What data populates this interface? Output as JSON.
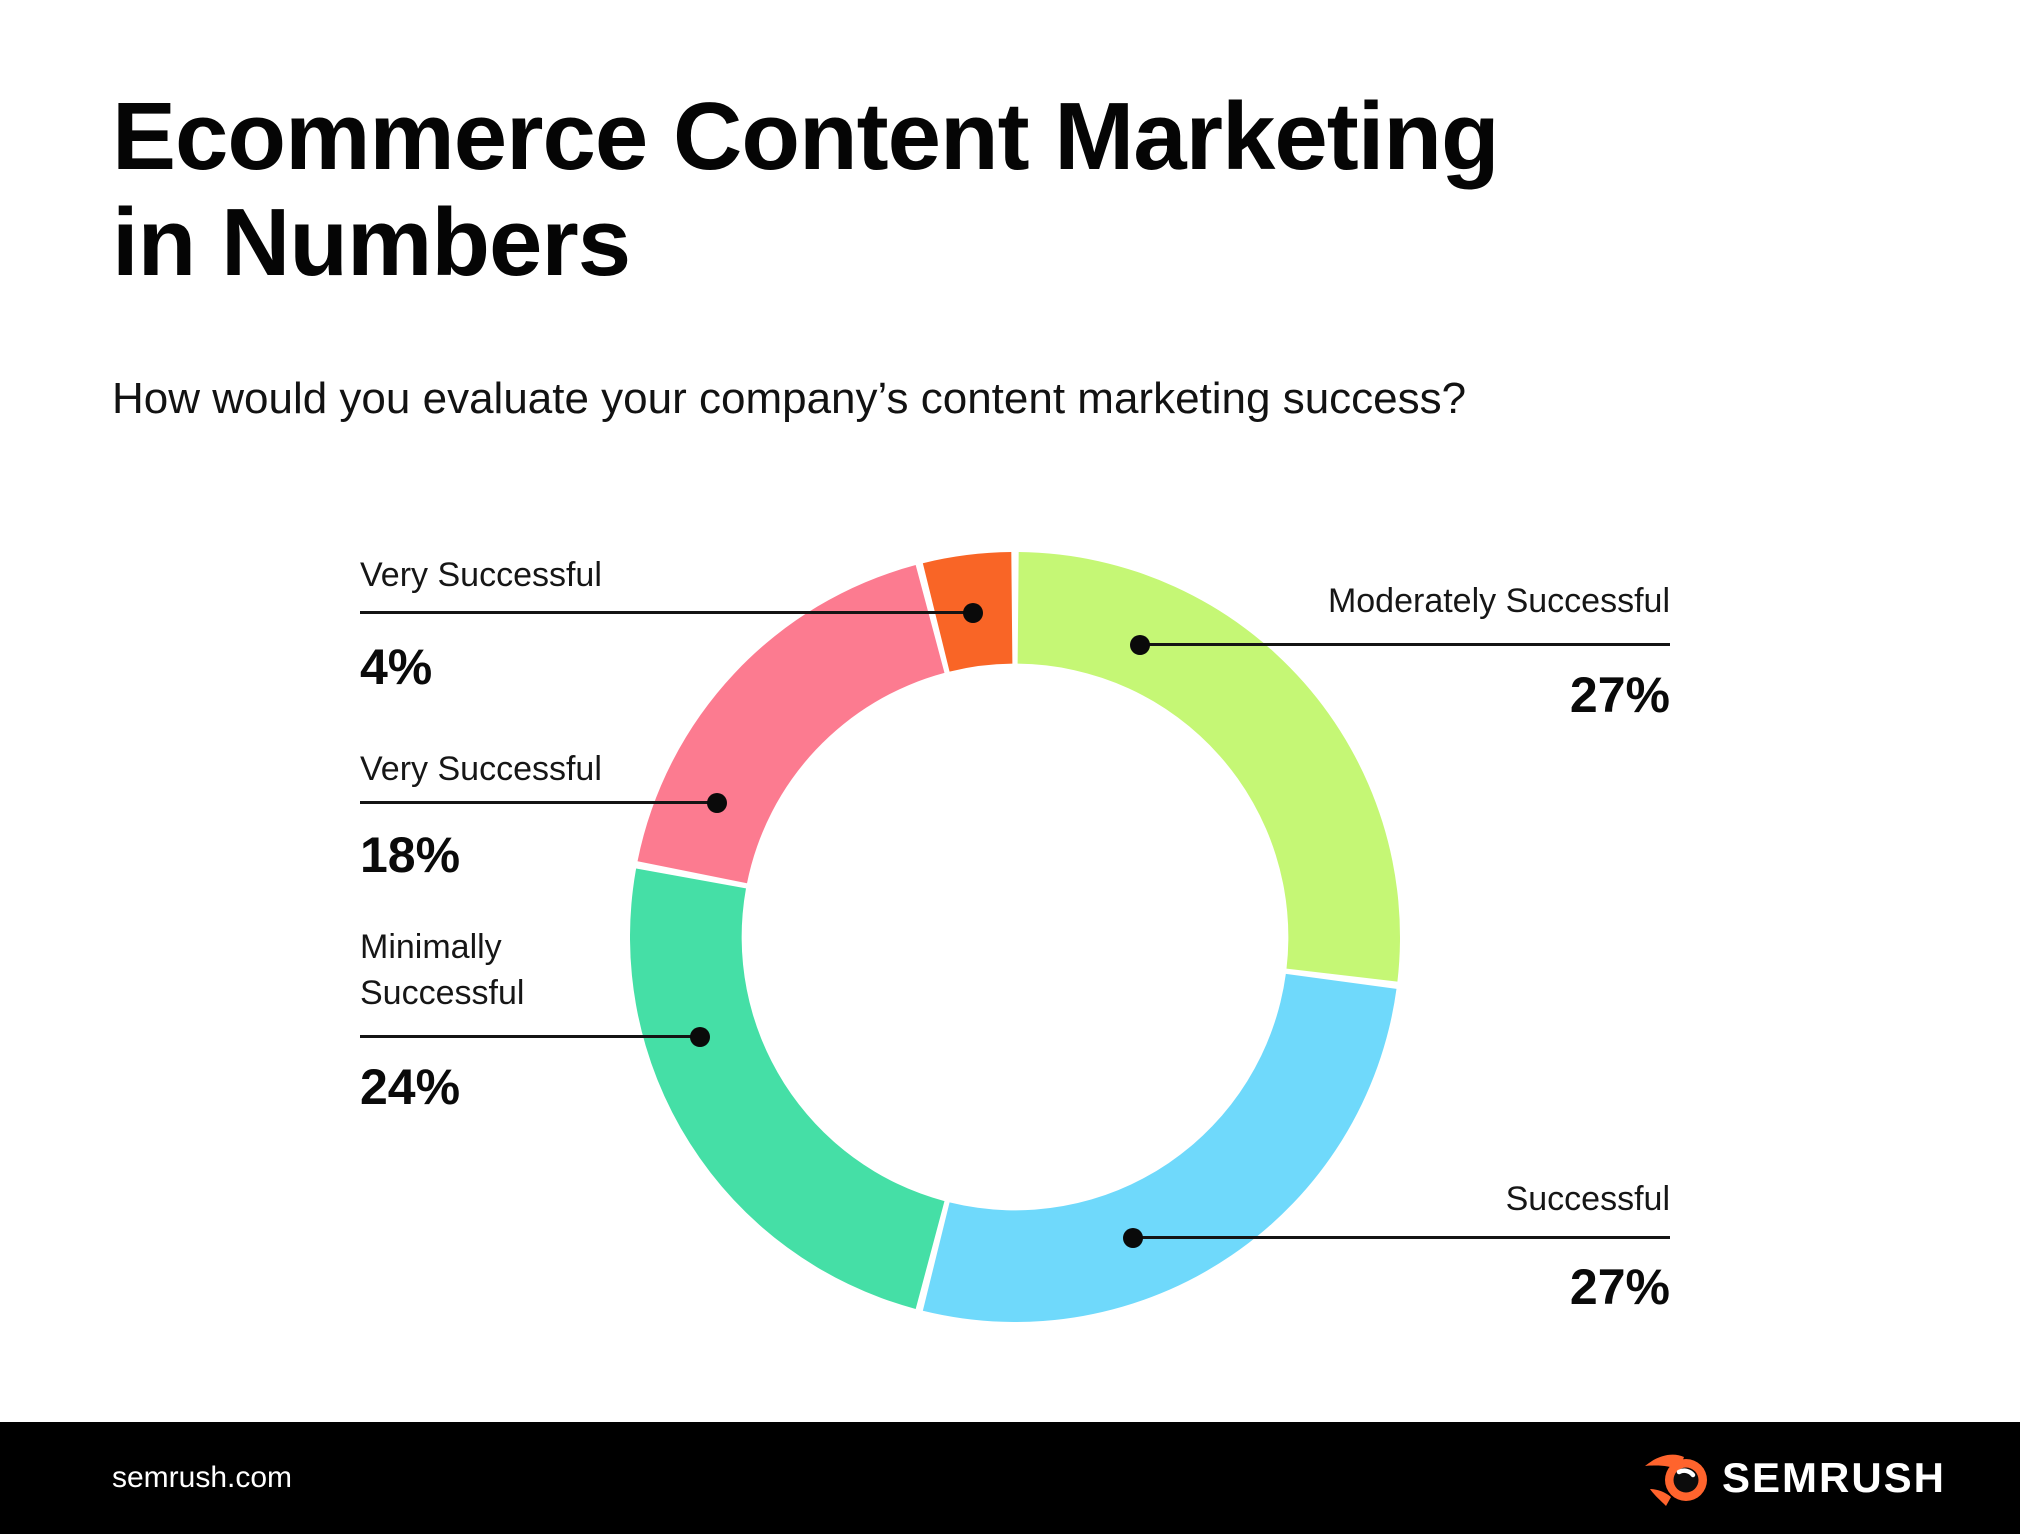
{
  "page": {
    "title_lines": [
      "Ecommerce Content Marketing",
      "in Numbers"
    ],
    "subtitle": "How would you evaluate your company’s content marketing success?"
  },
  "chart_data": {
    "type": "pie",
    "variant": "donut",
    "title": "How would you evaluate your company’s content marketing success?",
    "start_angle_deg": 0,
    "direction": "clockwise",
    "inner_radius_ratio": 0.71,
    "slices": [
      {
        "label": "Moderately Successful",
        "value": 27,
        "display": "27%",
        "color": "#C5F775",
        "label_side": "right"
      },
      {
        "label": "Successful",
        "value": 27,
        "display": "27%",
        "color": "#6FD9FB",
        "label_side": "right"
      },
      {
        "label": "Minimally Successful",
        "value": 24,
        "display": "24%",
        "color": "#45DFA6",
        "label_side": "left"
      },
      {
        "label": "Very Successful",
        "value": 18,
        "display": "18%",
        "color": "#FC7B90",
        "label_side": "left"
      },
      {
        "label": "Very Successful",
        "value": 4,
        "display": "4%",
        "color": "#F96526",
        "label_side": "left"
      }
    ]
  },
  "footer": {
    "site": "semrush.com",
    "brand": "SEMRUSH",
    "brand_color": "#FF642D",
    "bg": "#000000"
  }
}
